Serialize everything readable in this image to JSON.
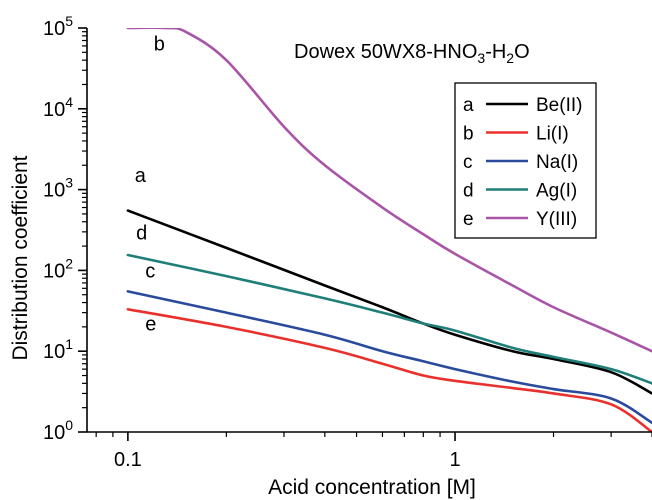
{
  "chart_data": {
    "type": "line",
    "title": "Dowex 50WX8-HNO3-H2O",
    "title_parts": {
      "a": "Dowex 50WX8-HNO",
      "b": "3",
      "c": "-H",
      "d": "2",
      "e": "O"
    },
    "xlabel": "Acid concentration [M]",
    "ylabel": "Distribution coefficient",
    "x_scale": "log",
    "y_scale": "log",
    "xlim": [
      0.075,
      4.0
    ],
    "ylim": [
      1,
      100000
    ],
    "x_ticks": [
      {
        "value": 0.1,
        "label": "0.1"
      },
      {
        "value": 1,
        "label": "1"
      }
    ],
    "y_ticks": [
      {
        "value": 1,
        "base": "10",
        "exp": "0"
      },
      {
        "value": 10,
        "base": "10",
        "exp": "1"
      },
      {
        "value": 100,
        "base": "10",
        "exp": "2"
      },
      {
        "value": 1000,
        "base": "10",
        "exp": "3"
      },
      {
        "value": 10000,
        "base": "10",
        "exp": "4"
      },
      {
        "value": 100000,
        "base": "10",
        "exp": "5"
      }
    ],
    "grid": false,
    "legend_position": "top-right",
    "series": [
      {
        "letter": "a",
        "name": "Be(II)",
        "color": "#000000",
        "x": [
          0.1,
          0.2,
          0.4,
          0.6,
          0.8,
          1.0,
          1.5,
          2.0,
          3.0,
          4.0
        ],
        "y": [
          550,
          190,
          65,
          35,
          22,
          16,
          10,
          8,
          5.5,
          3
        ]
      },
      {
        "letter": "b",
        "name": "Li(I)",
        "color": "#e8312c",
        "x": [
          0.1,
          0.2,
          0.4,
          0.6,
          0.8,
          1.0,
          1.5,
          2.0,
          3.0,
          4.0
        ],
        "y": [
          33,
          20,
          11,
          7,
          5,
          4.3,
          3.5,
          3.0,
          2.2,
          1.0
        ]
      },
      {
        "letter": "c",
        "name": "Na(I)",
        "color": "#2a4a9c",
        "x": [
          0.1,
          0.2,
          0.4,
          0.6,
          0.8,
          1.0,
          1.5,
          2.0,
          3.0,
          4.0
        ],
        "y": [
          55,
          30,
          16,
          10,
          7.5,
          6,
          4.2,
          3.4,
          2.6,
          1.3
        ]
      },
      {
        "letter": "d",
        "name": "Ag(I)",
        "color": "#1f7f78",
        "x": [
          0.1,
          0.2,
          0.4,
          0.6,
          0.8,
          1.0,
          1.5,
          2.0,
          3.0,
          4.0
        ],
        "y": [
          155,
          85,
          45,
          30,
          22,
          18,
          11,
          8.5,
          6,
          4
        ]
      },
      {
        "letter": "e",
        "name": "Y(III)",
        "color": "#a855a8",
        "x": [
          0.1,
          0.13,
          0.15,
          0.2,
          0.3,
          0.4,
          0.6,
          0.8,
          1.0,
          1.5,
          2.0,
          3.0,
          4.0
        ],
        "y": [
          100000,
          100000,
          90000,
          40000,
          6000,
          2000,
          600,
          280,
          160,
          65,
          35,
          17,
          10
        ]
      }
    ],
    "curve_labels": [
      {
        "letter": "a",
        "x": 0.105,
        "y": 1250
      },
      {
        "letter": "b",
        "x": 0.12,
        "y": 53000
      },
      {
        "letter": "c",
        "x": 0.113,
        "y": 82
      },
      {
        "letter": "d",
        "x": 0.106,
        "y": 240
      },
      {
        "letter": "e",
        "x": 0.113,
        "y": 18
      }
    ]
  }
}
